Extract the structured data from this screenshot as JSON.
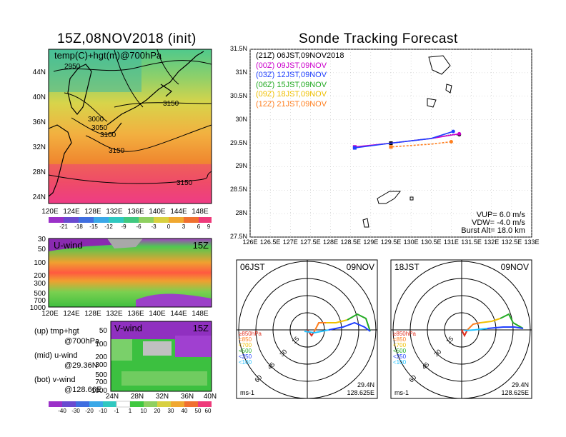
{
  "colors": {
    "sec1": "#000000",
    "sec2": "#cc00cc",
    "sec3": "#1f3fff",
    "sec4": "#22aa22",
    "sec5": "#f0c000",
    "sec6": "#ff7f1f",
    "track_red": "#e03020"
  },
  "left": {
    "title": "15Z,08NOV2018 (init)",
    "map_label": "temp(C)+hgt(m)@700hPa",
    "lat_ticks": [
      "44N",
      "40N",
      "36N",
      "32N",
      "28N",
      "24N"
    ],
    "lon_ticks": [
      "120E",
      "124E",
      "128E",
      "132E",
      "136E",
      "140E",
      "144E",
      "148E"
    ],
    "contour_labels": [
      "2950",
      "3000",
      "3050",
      "3100",
      "3150",
      "3150",
      "3150"
    ],
    "colorbar1": [
      "-21",
      "-18",
      "-15",
      "-12",
      "-9",
      "-6",
      "-3",
      "0",
      "3",
      "6",
      "9"
    ],
    "uwind": {
      "label": "U-wind",
      "time": "15Z",
      "p_ticks": [
        "30",
        "50",
        "100",
        "200",
        "300",
        "500",
        "700",
        "1000"
      ],
      "lon_ticks": [
        "120E",
        "124E",
        "128E",
        "132E",
        "136E",
        "140E",
        "144E",
        "148E"
      ]
    },
    "vwind": {
      "label": "V-wind",
      "time": "15Z",
      "p_ticks": [
        "50",
        "100",
        "200",
        "300",
        "500",
        "700",
        "1000"
      ],
      "lat_ticks": [
        "24N",
        "28N",
        "32N",
        "36N",
        "40N"
      ]
    },
    "legend": {
      "up1": "(up)  tmp+hgt",
      "up2": "@700hPa",
      "mid1": "(mid)  u-wind",
      "mid2": "@29.36N",
      "bot1": "(bot)  v-wind",
      "bot2": "@128.66E"
    },
    "colorbar2": [
      "-40",
      "-30",
      "-20",
      "-10",
      "-1",
      "1",
      "10",
      "20",
      "30",
      "40",
      "50",
      "60"
    ]
  },
  "right": {
    "title": "Sonde Tracking Forecast",
    "lat_ticks": [
      "31.5N",
      "31N",
      "30.5N",
      "30N",
      "29.5N",
      "29N",
      "28.5N",
      "28N",
      "27.5N"
    ],
    "lon_ticks": [
      "126E",
      "126.5E",
      "127E",
      "127.5E",
      "128E",
      "128.5E",
      "129E",
      "129.5E",
      "130E",
      "130.5E",
      "131E",
      "131.5E",
      "132E",
      "132.5E",
      "133E"
    ],
    "legend": [
      {
        "code": "(21Z)",
        "label": "06JST,09NOV2018"
      },
      {
        "code": "(00Z)",
        "label": "09JST,09NOV"
      },
      {
        "code": "(03Z)",
        "label": "12JST,09NOV"
      },
      {
        "code": "(06Z)",
        "label": "15JST,09NOV"
      },
      {
        "code": "(09Z)",
        "label": "18JST,09NOV"
      },
      {
        "code": "(12Z)",
        "label": "21JST,09NOV"
      }
    ],
    "vup": "VUP=  6.0  m/s",
    "vdw": "VDW= -4.0  m/s",
    "burst": "Burst Alt=  18.0  km"
  },
  "hodo1": {
    "time": "06JST",
    "date": "09NOV",
    "rings": [
      "15",
      "30",
      "45",
      "60"
    ],
    "levels": [
      "≥850hPa",
      "<850",
      "<700",
      "<500",
      "<250",
      "<100"
    ],
    "lat": "29.4N",
    "lon": "128.625E",
    "unit": "ms-1"
  },
  "hodo2": {
    "time": "18JST",
    "date": "09NOV",
    "rings": [
      "15",
      "30",
      "45",
      "60"
    ],
    "levels": [
      "≥850hPa",
      "<850",
      "<700",
      "<500",
      "<250",
      "<100"
    ],
    "lat": "29.4N",
    "lon": "128.625E",
    "unit": "ms-1"
  },
  "chart_data": [
    {
      "type": "heatmap",
      "title": "15Z,08NOV2018 (init)",
      "description_label": "temp(C)+hgt(m)@700hPa",
      "x_range": [
        "120E",
        "150E"
      ],
      "y_range": [
        "22N",
        "46N"
      ],
      "colorbar_levels": [
        -21,
        -18,
        -15,
        -12,
        -9,
        -6,
        -3,
        0,
        3,
        6,
        9
      ],
      "contour_labels_m": [
        2950,
        3000,
        3050,
        3100,
        3150
      ]
    },
    {
      "type": "line",
      "title": "Sonde Tracking Forecast",
      "x_range": [
        126,
        133
      ],
      "y_range": [
        27.5,
        31.5
      ],
      "series": [
        {
          "name": "(21Z) 06JST,09NOV2018",
          "points": [
            [
              131.2,
              29.68
            ],
            [
              131.0,
              29.68
            ],
            [
              130.5,
              29.6
            ],
            [
              130.0,
              29.55
            ],
            [
              129.5,
              29.5
            ],
            [
              129.0,
              29.45
            ],
            [
              128.6,
              29.42
            ]
          ]
        },
        {
          "name": "(00Z) 09JST,09NOV",
          "points": [
            [
              131.2,
              29.7
            ],
            [
              130.5,
              29.6
            ],
            [
              129.5,
              29.5
            ],
            [
              128.6,
              29.42
            ]
          ]
        },
        {
          "name": "(03Z) 12JST,09NOV",
          "points": [
            [
              131.05,
              29.75
            ],
            [
              130.5,
              29.6
            ],
            [
              129.5,
              29.5
            ],
            [
              128.6,
              29.4
            ]
          ]
        },
        {
          "name": "(12Z) 21JST,09NOV",
          "points": [
            [
              131.0,
              29.53
            ],
            [
              130.5,
              29.48
            ],
            [
              130.0,
              29.45
            ],
            [
              129.5,
              29.42
            ]
          ]
        }
      ],
      "annotations": [
        "VUP= 6.0 m/s",
        "VDW= -4.0 m/s",
        "Burst Alt= 18.0 km"
      ]
    }
  ]
}
